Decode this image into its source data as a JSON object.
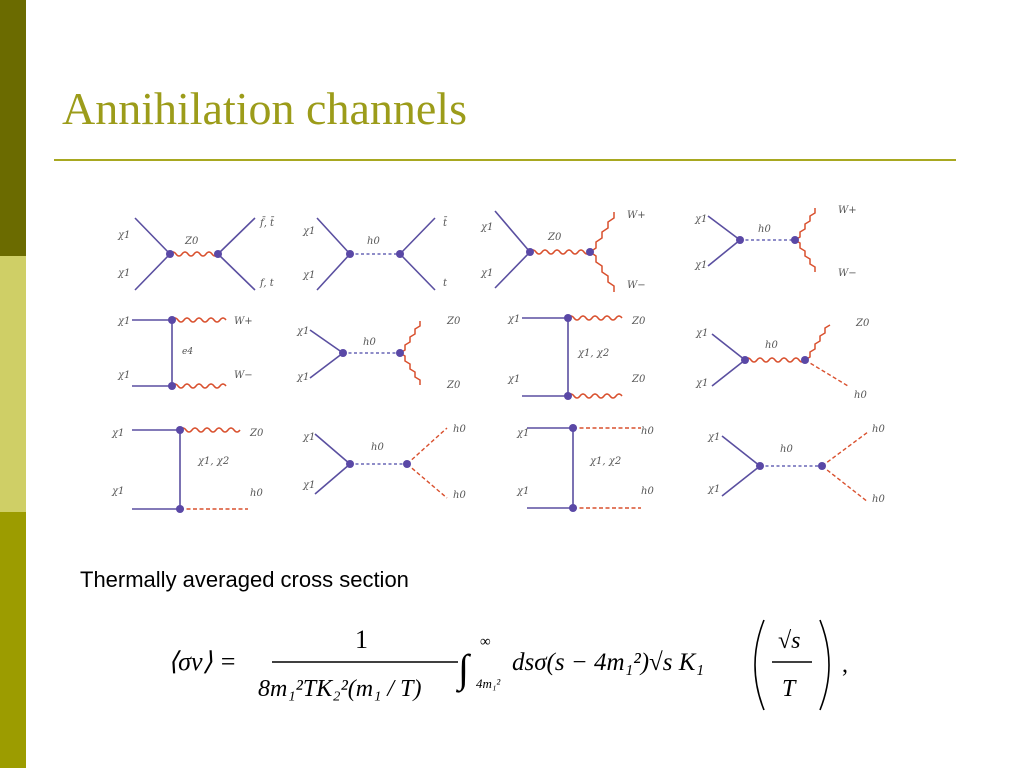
{
  "slide": {
    "title": "Annihilation channels",
    "subtitle": "Thermally averaged cross section",
    "accent_color": "#9c9c1a",
    "band_colors": [
      "#6b6b00",
      "#cfcf66",
      "#9c9c00"
    ]
  },
  "diagrams": [
    {
      "labels": [
        "χ1",
        "χ1",
        "Z0",
        "f̄, t̄",
        "f, t"
      ]
    },
    {
      "labels": [
        "χ1",
        "χ1",
        "h0",
        "t̄",
        "t"
      ]
    },
    {
      "labels": [
        "χ1",
        "χ1",
        "Z0",
        "W+",
        "W−"
      ]
    },
    {
      "labels": [
        "χ1",
        "χ1",
        "h0",
        "W+",
        "W−"
      ]
    },
    {
      "labels": [
        "χ1",
        "χ1",
        "e4",
        "W+",
        "W−"
      ]
    },
    {
      "labels": [
        "χ1",
        "χ1",
        "h0",
        "Z0",
        "Z0"
      ]
    },
    {
      "labels": [
        "χ1",
        "χ1",
        "χ1, χ2",
        "Z0",
        "Z0"
      ]
    },
    {
      "labels": [
        "χ1",
        "χ1",
        "h0",
        "Z0",
        "h0"
      ]
    },
    {
      "labels": [
        "χ1",
        "χ1",
        "χ1, χ2",
        "Z0",
        "h0"
      ]
    },
    {
      "labels": [
        "χ1",
        "χ1",
        "h0",
        "h0",
        "h0"
      ]
    },
    {
      "labels": [
        "χ1",
        "χ1",
        "χ1, χ2",
        "h0",
        "h0"
      ]
    },
    {
      "labels": [
        "χ1",
        "χ1",
        "h0",
        "h0",
        "h0"
      ]
    }
  ],
  "formula": {
    "lhs": "⟨σv⟩ =",
    "numerator": "1",
    "denominator": "8m₁²TK₂²(m₁ / T)",
    "integral": "∫",
    "upper_limit": "∞",
    "lower_limit": "4m₁²",
    "integrand": "dsσ(s − 4m₁²)√s K₁",
    "arg_numerator": "√s",
    "arg_denominator": "T",
    "trailing": ","
  }
}
